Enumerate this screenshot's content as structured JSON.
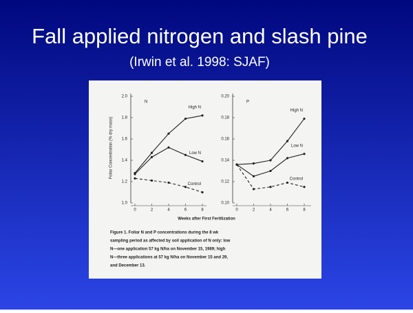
{
  "slide": {
    "title": "Fall applied nitrogen and slash pine",
    "subtitle": "(Irwin et al. 1998: SJAF)"
  },
  "figure": {
    "ylabel": "Foliar Concentration (% dry mass)",
    "xlabel": "Weeks after First Fertilization",
    "caption": [
      "Figure 1.  Foliar N and P concentrations during the 8 wk",
      "sampling period as affected by soil application of N only: low",
      "N—one application 57 kg N/ha on November 15, 1989; high",
      "N—three applications at 57 kg N/ha on November 15 and 29,",
      "and December 13."
    ]
  },
  "chart_data": [
    {
      "type": "line",
      "title": "N",
      "x": [
        0,
        2,
        4,
        6,
        8
      ],
      "xlim": [
        0,
        8
      ],
      "xticks": [
        0,
        2,
        4,
        6,
        8
      ],
      "ylim": [
        1.0,
        2.0
      ],
      "yticks": [
        {
          "value": 1.0,
          "label": "1.0"
        },
        1.2,
        1.4,
        1.6,
        1.8,
        {
          "value": 2.0,
          "label": "2.0"
        }
      ],
      "series": [
        {
          "name": "High N",
          "color": "#222222",
          "style": "solid",
          "values": [
            1.28,
            1.47,
            1.65,
            1.79,
            1.82
          ]
        },
        {
          "name": "Low N",
          "color": "#222222",
          "style": "solid",
          "values": [
            1.27,
            1.43,
            1.52,
            1.45,
            1.39
          ]
        },
        {
          "name": "Control",
          "color": "#222222",
          "style": "dashed",
          "values": [
            1.23,
            1.21,
            1.19,
            1.15,
            1.1
          ]
        }
      ]
    },
    {
      "type": "line",
      "title": "P",
      "x": [
        0,
        2,
        4,
        6,
        8
      ],
      "xlim": [
        0,
        8
      ],
      "xticks": [
        0,
        2,
        4,
        6,
        8
      ],
      "ylim": [
        0.1,
        0.2
      ],
      "yticks": [
        {
          "value": 0.1,
          "label": "0.10"
        },
        0.12,
        0.14,
        0.16,
        0.18,
        {
          "value": 0.2,
          "label": "0.20"
        }
      ],
      "series": [
        {
          "name": "High N",
          "color": "#222222",
          "style": "solid",
          "values": [
            0.136,
            0.137,
            0.14,
            0.158,
            0.179
          ]
        },
        {
          "name": "Low N",
          "color": "#222222",
          "style": "solid",
          "values": [
            0.136,
            0.125,
            0.13,
            0.142,
            0.146
          ]
        },
        {
          "name": "Control",
          "color": "#222222",
          "style": "dashed",
          "values": [
            0.136,
            0.113,
            0.115,
            0.119,
            0.115
          ]
        }
      ]
    }
  ]
}
